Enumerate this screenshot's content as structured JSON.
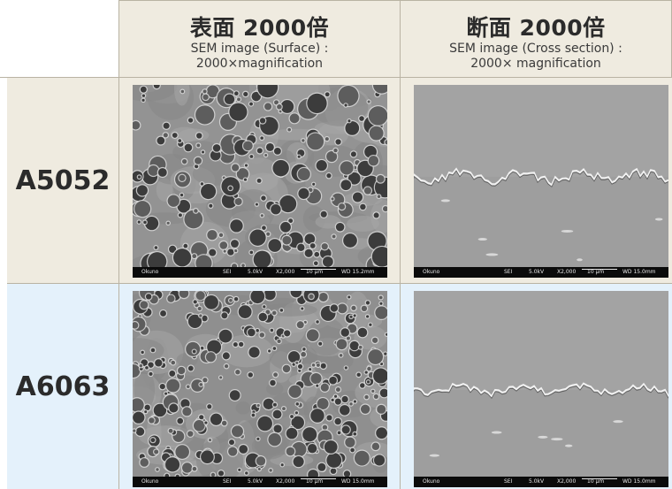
{
  "columns": [
    {
      "title": "表面 2000倍",
      "subtitle_line1": "SEM image (Surface) :",
      "subtitle_line2": "2000×magnification"
    },
    {
      "title": "断面 2000倍",
      "subtitle_line1": "SEM image (Cross section) :",
      "subtitle_line2": "2000× magnification"
    }
  ],
  "rows": [
    {
      "label": "A5052",
      "images": [
        {
          "kind": "surface",
          "name": "Okuno",
          "detector": "SEI",
          "kv": "5.0kV",
          "mag": "X2,000",
          "scale": "10 µm",
          "wd": "WD 15.2mm"
        },
        {
          "kind": "cross-section",
          "name": "Okuno",
          "detector": "SEI",
          "kv": "5.0kV",
          "mag": "X2,000",
          "scale": "10 µm",
          "wd": "WD 15.0mm"
        }
      ]
    },
    {
      "label": "A6063",
      "images": [
        {
          "kind": "surface",
          "name": "Okuno",
          "detector": "SEI",
          "kv": "5.0kV",
          "mag": "X2,000",
          "scale": "10 µm",
          "wd": "WD 15.0mm"
        },
        {
          "kind": "cross-section",
          "name": "Okuno",
          "detector": "SEI",
          "kv": "5.0kV",
          "mag": "X2,000",
          "scale": "10 µm",
          "wd": "WD 15.0mm"
        }
      ]
    }
  ],
  "colors": {
    "header_bg": "#efebe0",
    "row2_bg": "#e4f1fb",
    "grid": "#b9b3a3"
  }
}
